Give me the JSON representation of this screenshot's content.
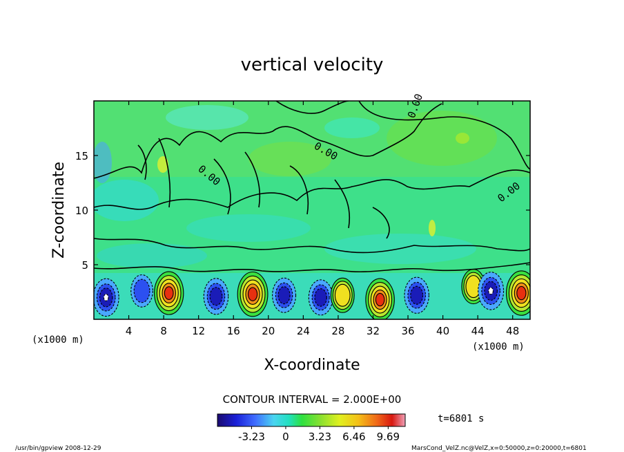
{
  "chart_data": {
    "type": "heatmap",
    "title": "vertical velocity",
    "xlabel": "X-coordinate",
    "ylabel": "Z-coordinate",
    "x_unit": "(x1000 m)",
    "y_unit": "(x1000 m)",
    "xlim": [
      0,
      50
    ],
    "ylim": [
      0,
      20
    ],
    "x_ticks": [
      "4",
      "8",
      "12",
      "16",
      "20",
      "24",
      "28",
      "32",
      "36",
      "40",
      "44",
      "48"
    ],
    "y_ticks": [
      "5",
      "10",
      "15"
    ],
    "contour_interval": "CONTOUR INTERVAL = 2.000E+00",
    "contour_labels": [
      "0.00",
      "0.00",
      "0.00",
      "0.00"
    ],
    "colorbar": {
      "ticks": [
        "-3.23",
        "0",
        "3.23",
        "6.46",
        "9.69"
      ],
      "range": [
        -6.46,
        11.3
      ]
    },
    "cells_near_surface": [
      {
        "x": 1.4,
        "z": 2.0,
        "w": -6.0
      },
      {
        "x": 5.5,
        "z": 2.6,
        "w": -2.5
      },
      {
        "x": 8.6,
        "z": 2.4,
        "w": 9.5
      },
      {
        "x": 14.0,
        "z": 2.1,
        "w": -5.0
      },
      {
        "x": 18.2,
        "z": 2.3,
        "w": 10.5
      },
      {
        "x": 21.8,
        "z": 2.2,
        "w": -4.0
      },
      {
        "x": 26.0,
        "z": 2.0,
        "w": -4.5
      },
      {
        "x": 28.5,
        "z": 2.2,
        "w": 4.0
      },
      {
        "x": 32.8,
        "z": 1.8,
        "w": 9.0
      },
      {
        "x": 37.0,
        "z": 2.2,
        "w": -5.0
      },
      {
        "x": 43.5,
        "z": 3.0,
        "w": 4.0
      },
      {
        "x": 45.5,
        "z": 2.6,
        "w": -6.0
      },
      {
        "x": 49.0,
        "z": 2.4,
        "w": 10.5
      }
    ],
    "grid": false
  },
  "annotations": {
    "time": "t=6801 s",
    "footer_left": "/usr/bin/gpview   2008-12-29",
    "footer_right": "MarsCond_VelZ.nc@VelZ,x=0:50000,z=0:20000,t=6801"
  }
}
